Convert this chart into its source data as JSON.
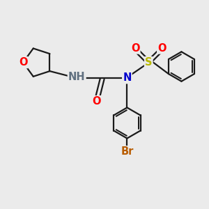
{
  "bg_color": "#ebebeb",
  "bond_color": "#1a1a1a",
  "bond_width": 1.6,
  "atom_colors": {
    "O": "#ff0000",
    "N_blue": "#0000cd",
    "N_gray": "#607080",
    "S": "#b8b800",
    "Br": "#b85c00",
    "H": "#607080"
  },
  "font_size_atom": 10.5,
  "figsize": [
    3.0,
    3.0
  ],
  "dpi": 100
}
